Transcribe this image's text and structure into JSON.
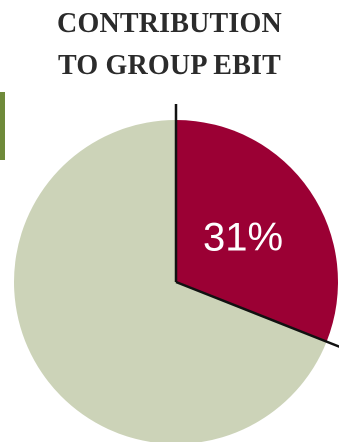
{
  "chart_data": {
    "type": "pie",
    "title_lines": [
      "CONTRIBUTION",
      "TO GROUP EBIT"
    ],
    "slices": [
      {
        "value": 31,
        "label": "31%",
        "color": "#9b0034"
      },
      {
        "value": 69,
        "label": "",
        "color": "#ccd3b8"
      }
    ]
  },
  "colors": {
    "accent_bar": "#6f8a3a",
    "divider_line": "#111111"
  }
}
